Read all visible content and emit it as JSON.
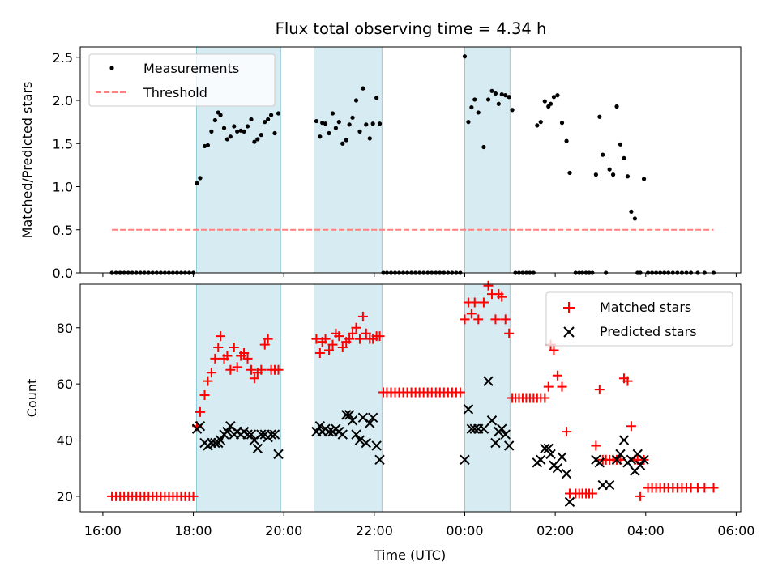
{
  "chart_data": {
    "title": "Flux total observing time = 4.34 h",
    "xlabel": "Time (UTC)",
    "x_unit": "hours since 16:00 UTC",
    "xlim": [
      -0.5,
      14.1
    ],
    "x_ticks": [
      {
        "value": 0,
        "label": "16:00"
      },
      {
        "value": 2,
        "label": "18:00"
      },
      {
        "value": 4,
        "label": "20:00"
      },
      {
        "value": 6,
        "label": "22:00"
      },
      {
        "value": 8,
        "label": "00:00"
      },
      {
        "value": 10,
        "label": "02:00"
      },
      {
        "value": 12,
        "label": "04:00"
      },
      {
        "value": 14,
        "label": "06:00"
      }
    ],
    "observing_windows": [
      [
        2.07,
        3.93
      ],
      [
        4.67,
        6.17
      ],
      [
        8.0,
        9.0
      ]
    ],
    "panels": [
      {
        "type": "scatter",
        "ylabel": "Matched/Predicted stars",
        "ylim": [
          0,
          2.62
        ],
        "y_ticks": [
          0.0,
          0.5,
          1.0,
          1.5,
          2.0,
          2.5
        ],
        "legend_position": "upper-left",
        "series": [
          {
            "name": "Measurements",
            "marker": "dot",
            "color": "#000000",
            "x": [
              0.2,
              0.29,
              0.38,
              0.47,
              0.56,
              0.65,
              0.74,
              0.83,
              0.92,
              1.01,
              1.1,
              1.19,
              1.28,
              1.37,
              1.46,
              1.55,
              1.64,
              1.73,
              1.82,
              1.91,
              2.0,
              2.08,
              2.15,
              2.25,
              2.32,
              2.4,
              2.48,
              2.55,
              2.6,
              2.68,
              2.75,
              2.82,
              2.9,
              2.97,
              3.05,
              3.12,
              3.2,
              3.28,
              3.35,
              3.42,
              3.5,
              3.58,
              3.65,
              3.72,
              3.8,
              3.88,
              4.72,
              4.8,
              4.85,
              4.92,
              5.0,
              5.08,
              5.15,
              5.22,
              5.3,
              5.38,
              5.45,
              5.52,
              5.6,
              5.68,
              5.75,
              5.82,
              5.9,
              5.97,
              6.05,
              6.12,
              6.2,
              6.28,
              6.37,
              6.46,
              6.55,
              6.64,
              6.73,
              6.82,
              6.91,
              7.0,
              7.09,
              7.18,
              7.27,
              7.36,
              7.45,
              7.54,
              7.63,
              7.72,
              7.81,
              7.9,
              8.0,
              8.08,
              8.15,
              8.22,
              8.3,
              8.42,
              8.52,
              8.6,
              8.68,
              8.75,
              8.82,
              8.9,
              8.98,
              9.05,
              9.12,
              9.2,
              9.28,
              9.36,
              9.44,
              9.52,
              9.6,
              9.68,
              9.77,
              9.85,
              9.9,
              9.97,
              10.05,
              10.15,
              10.25,
              10.32,
              10.45,
              10.53,
              10.6,
              10.68,
              10.75,
              10.82,
              10.9,
              10.98,
              11.05,
              11.12,
              11.2,
              11.28,
              11.36,
              11.44,
              11.52,
              11.6,
              11.68,
              11.76,
              11.82,
              11.88,
              11.96,
              12.05,
              12.14,
              12.23,
              12.32,
              12.41,
              12.5,
              12.6,
              12.7,
              12.8,
              12.9,
              13.0,
              13.15,
              13.3,
              13.5
            ],
            "y": [
              0,
              0,
              0,
              0,
              0,
              0,
              0,
              0,
              0,
              0,
              0,
              0,
              0,
              0,
              0,
              0,
              0,
              0,
              0,
              0,
              0,
              1.04,
              1.1,
              1.47,
              1.48,
              1.64,
              1.77,
              1.86,
              1.83,
              1.68,
              1.55,
              1.58,
              1.7,
              1.64,
              1.65,
              1.64,
              1.7,
              1.78,
              1.52,
              1.55,
              1.6,
              1.75,
              1.78,
              1.83,
              1.62,
              1.85,
              1.76,
              1.58,
              1.74,
              1.73,
              1.62,
              1.85,
              1.68,
              1.75,
              1.5,
              1.54,
              1.72,
              1.8,
              2.0,
              1.64,
              2.14,
              1.72,
              1.56,
              1.73,
              2.03,
              1.73,
              0,
              0,
              0,
              0,
              0,
              0,
              0,
              0,
              0,
              0,
              0,
              0,
              0,
              0,
              0,
              0,
              0,
              0,
              0,
              0,
              2.51,
              1.75,
              1.92,
              2.01,
              1.86,
              1.46,
              2.01,
              2.11,
              2.08,
              1.96,
              2.07,
              2.06,
              2.04,
              1.89,
              0,
              0,
              0,
              0,
              0,
              0,
              1.71,
              1.75,
              1.99,
              1.93,
              1.96,
              2.04,
              2.06,
              1.74,
              1.53,
              1.16,
              0,
              0,
              0,
              0,
              0,
              0,
              1.14,
              1.81,
              1.37,
              0,
              1.2,
              1.14,
              1.93,
              1.49,
              1.33,
              1.12,
              0.71,
              0.63,
              0,
              0,
              1.09,
              0,
              0,
              0,
              0,
              0,
              0,
              0,
              0,
              0,
              0,
              0,
              0,
              0,
              0
            ]
          },
          {
            "name": "Threshold",
            "marker": "dashed-line",
            "color": "#ff7f7f",
            "x": [
              0.2,
              13.5
            ],
            "y": [
              0.5,
              0.5
            ]
          }
        ]
      },
      {
        "type": "scatter",
        "ylabel": "Count",
        "ylim": [
          14.5,
          95.5
        ],
        "y_ticks": [
          20,
          40,
          60,
          80
        ],
        "legend_position": "upper-right",
        "series": [
          {
            "name": "Matched stars",
            "marker": "plus",
            "color": "#ff0000",
            "x": [
              0.2,
              0.29,
              0.38,
              0.47,
              0.56,
              0.65,
              0.74,
              0.83,
              0.92,
              1.01,
              1.1,
              1.19,
              1.28,
              1.37,
              1.46,
              1.55,
              1.64,
              1.73,
              1.82,
              1.91,
              2.0,
              2.08,
              2.15,
              2.25,
              2.32,
              2.4,
              2.48,
              2.55,
              2.6,
              2.68,
              2.75,
              2.82,
              2.9,
              2.97,
              3.05,
              3.12,
              3.2,
              3.28,
              3.35,
              3.42,
              3.5,
              3.58,
              3.65,
              3.72,
              3.8,
              3.88,
              4.72,
              4.8,
              4.85,
              4.92,
              5.0,
              5.08,
              5.15,
              5.22,
              5.3,
              5.38,
              5.45,
              5.52,
              5.6,
              5.68,
              5.75,
              5.82,
              5.9,
              5.97,
              6.05,
              6.12,
              6.2,
              6.28,
              6.37,
              6.46,
              6.55,
              6.64,
              6.73,
              6.82,
              6.91,
              7.0,
              7.09,
              7.18,
              7.27,
              7.36,
              7.45,
              7.54,
              7.63,
              7.72,
              7.81,
              7.9,
              8.0,
              8.08,
              8.15,
              8.22,
              8.3,
              8.42,
              8.52,
              8.6,
              8.68,
              8.75,
              8.82,
              8.9,
              8.98,
              9.05,
              9.12,
              9.2,
              9.28,
              9.36,
              9.44,
              9.52,
              9.6,
              9.68,
              9.77,
              9.85,
              9.9,
              9.97,
              10.05,
              10.15,
              10.25,
              10.32,
              10.45,
              10.53,
              10.6,
              10.68,
              10.75,
              10.82,
              10.9,
              10.98,
              11.05,
              11.12,
              11.2,
              11.28,
              11.36,
              11.44,
              11.52,
              11.6,
              11.68,
              11.76,
              11.82,
              11.88,
              11.96,
              12.05,
              12.14,
              12.23,
              12.32,
              12.41,
              12.5,
              12.6,
              12.7,
              12.8,
              12.9,
              13.0,
              13.15,
              13.3,
              13.5
            ],
            "y": [
              20,
              20,
              20,
              20,
              20,
              20,
              20,
              20,
              20,
              20,
              20,
              20,
              20,
              20,
              20,
              20,
              20,
              20,
              20,
              20,
              20,
              45,
              50,
              56,
              61,
              64,
              69,
              73,
              77,
              69,
              70,
              65,
              73,
              66,
              70,
              71,
              69,
              65,
              62,
              64,
              65,
              74,
              76,
              65,
              65,
              65,
              76,
              71,
              75,
              76,
              72,
              74,
              78,
              77,
              73,
              75,
              76,
              78,
              80,
              76,
              84,
              78,
              76,
              76,
              77,
              77,
              57,
              57,
              57,
              57,
              57,
              57,
              57,
              57,
              57,
              57,
              57,
              57,
              57,
              57,
              57,
              57,
              57,
              57,
              57,
              57,
              83,
              89,
              85,
              89,
              83,
              89,
              95,
              92,
              83,
              92,
              91,
              83,
              78,
              55,
              55,
              55,
              55,
              55,
              55,
              55,
              55,
              55,
              55,
              59,
              74,
              72,
              63,
              59,
              43,
              21,
              21,
              21,
              21,
              21,
              21,
              21,
              38,
              58,
              33,
              33,
              33,
              33,
              33,
              33,
              62,
              61,
              45,
              33,
              33,
              20,
              33,
              23,
              23,
              23,
              23,
              23,
              23,
              23,
              23,
              23,
              23,
              23,
              23,
              23,
              23
            ]
          },
          {
            "name": "Predicted stars",
            "marker": "x",
            "color": "#000000",
            "x": [
              2.08,
              2.15,
              2.25,
              2.32,
              2.4,
              2.48,
              2.55,
              2.6,
              2.68,
              2.75,
              2.82,
              2.9,
              2.97,
              3.05,
              3.12,
              3.2,
              3.28,
              3.35,
              3.42,
              3.5,
              3.58,
              3.65,
              3.72,
              3.8,
              3.88,
              4.72,
              4.8,
              4.85,
              4.92,
              5.0,
              5.08,
              5.15,
              5.22,
              5.3,
              5.38,
              5.45,
              5.52,
              5.6,
              5.68,
              5.75,
              5.82,
              5.9,
              5.97,
              6.05,
              6.12,
              8.0,
              8.08,
              8.15,
              8.22,
              8.3,
              8.42,
              8.52,
              8.6,
              8.68,
              8.75,
              8.82,
              8.9,
              8.98,
              9.6,
              9.68,
              9.77,
              9.85,
              9.9,
              9.97,
              10.05,
              10.15,
              10.25,
              10.32,
              10.9,
              10.98,
              11.05,
              11.2,
              11.36,
              11.44,
              11.52,
              11.6,
              11.68,
              11.76,
              11.82,
              11.88,
              11.96
            ],
            "y": [
              44,
              45,
              39,
              38,
              39,
              39,
              39,
              40,
              42,
              43,
              45,
              42,
              43,
              42,
              43,
              42,
              42,
              40,
              37,
              42,
              42,
              41,
              42,
              42,
              35,
              43,
              45,
              43,
              44,
              43,
              43,
              44,
              43,
              42,
              49,
              49,
              47,
              42,
              40,
              48,
              39,
              46,
              48,
              38,
              33,
              33,
              51,
              44,
              44,
              44,
              44,
              61,
              47,
              39,
              43,
              44,
              42,
              38,
              32,
              33,
              37,
              37,
              35,
              31,
              30,
              34,
              28,
              18,
              33,
              32,
              24,
              24,
              33,
              35,
              40,
              32,
              33,
              29,
              35,
              31,
              33
            ]
          }
        ]
      }
    ]
  }
}
